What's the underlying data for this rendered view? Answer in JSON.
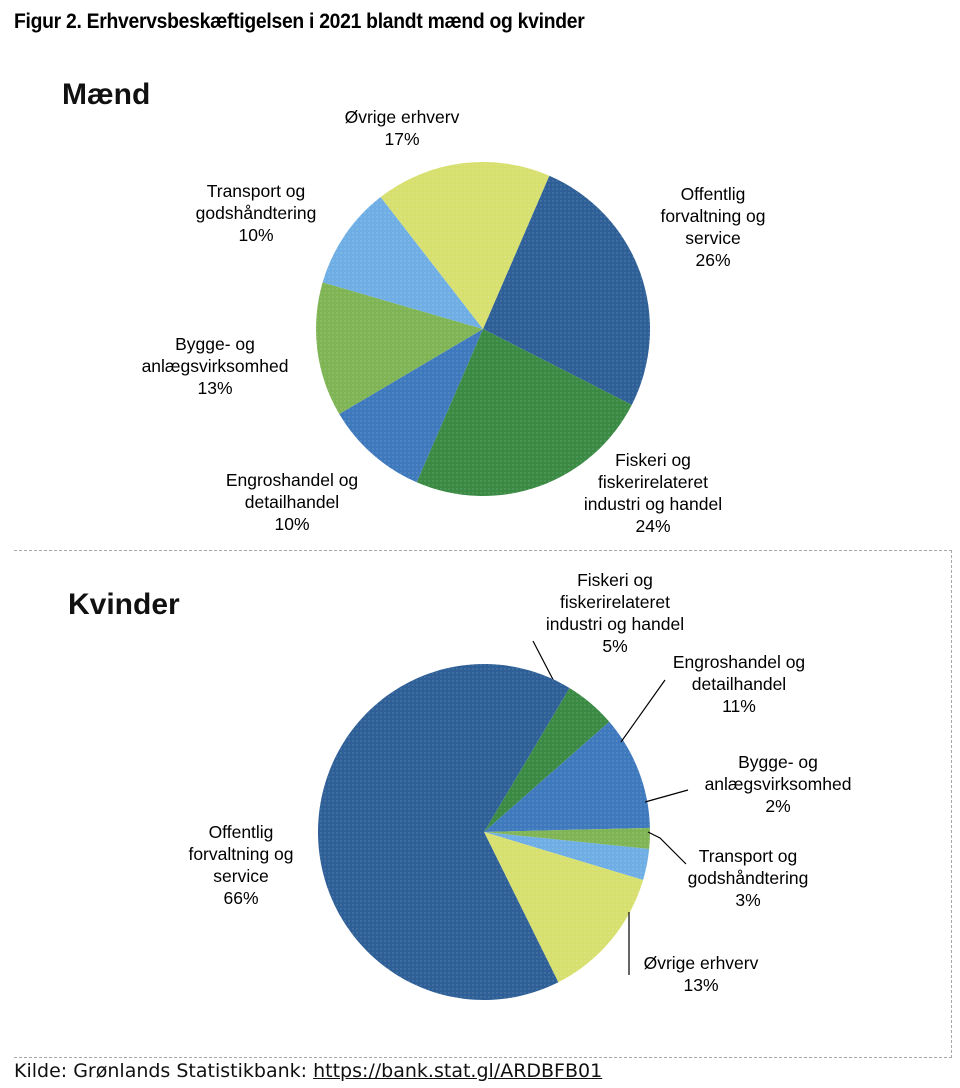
{
  "figure_title": "Figur 2. Erhvervsbeskæftigelsen i 2021 blandt mænd og kvinder",
  "source": {
    "label": "Kilde: Grønlands Statistikbank: ",
    "link_text": "https://bank.stat.gl/ARDBFB01"
  },
  "colors": {
    "Offentlig forvaltning og service": "#2e5f96",
    "Fiskeri og fiskerirelateret industri og handel": "#3a8a44",
    "Engroshandel og detailhandel": "#3f79bd",
    "Bygge- og anlægsvirksomhed": "#7fb455",
    "Transport og godshåndtering": "#6faee4",
    "Øvrige erhverv": "#d7e06e"
  },
  "chart_data": [
    {
      "type": "pie",
      "title": "Mænd",
      "slices": [
        {
          "label_lines": [
            "Offentlig",
            "forvaltning og",
            "service"
          ],
          "value": 26,
          "value_label": "26%"
        },
        {
          "label_lines": [
            "Fiskeri og",
            "fiskerirelateret",
            "industri og handel"
          ],
          "value": 24,
          "value_label": "24%"
        },
        {
          "label_lines": [
            "Engroshandel og",
            "detailhandel"
          ],
          "value": 10,
          "value_label": "10%"
        },
        {
          "label_lines": [
            "Bygge- og",
            "anlægsvirksomhed"
          ],
          "value": 13,
          "value_label": "13%"
        },
        {
          "label_lines": [
            "Transport og",
            "godshåndtering"
          ],
          "value": 10,
          "value_label": "10%"
        },
        {
          "label_lines": [
            "Øvrige erhverv"
          ],
          "value": 17,
          "value_label": "17%"
        }
      ]
    },
    {
      "type": "pie",
      "title": "Kvinder",
      "slices": [
        {
          "label_lines": [
            "Fiskeri og",
            "fiskerirelateret",
            "industri og handel"
          ],
          "value": 5,
          "value_label": "5%"
        },
        {
          "label_lines": [
            "Engroshandel og",
            "detailhandel"
          ],
          "value": 11,
          "value_label": "11%"
        },
        {
          "label_lines": [
            "Bygge- og",
            "anlægsvirksomhed"
          ],
          "value": 2,
          "value_label": "2%"
        },
        {
          "label_lines": [
            "Transport og",
            "godshåndtering"
          ],
          "value": 3,
          "value_label": "3%"
        },
        {
          "label_lines": [
            "Øvrige erhverv"
          ],
          "value": 13,
          "value_label": "13%"
        },
        {
          "label_lines": [
            "Offentlig",
            "forvaltning og",
            "service"
          ],
          "value": 66,
          "value_label": "66%"
        }
      ]
    }
  ]
}
